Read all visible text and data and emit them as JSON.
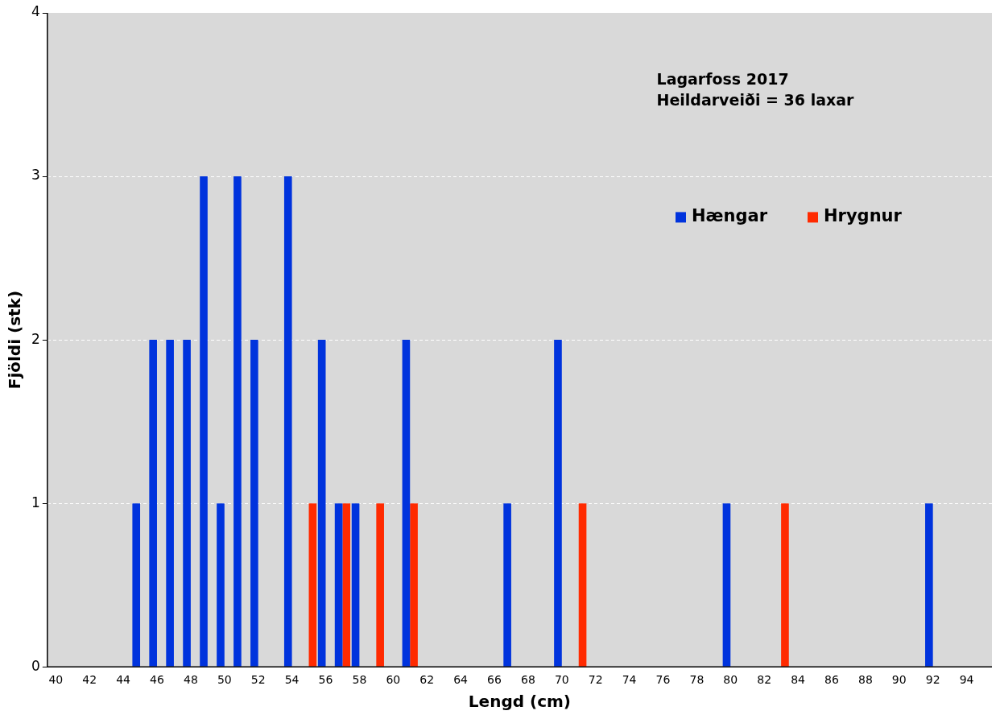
{
  "chart_data": {
    "type": "bar",
    "xlabel": "Lengd (cm)",
    "ylabel": "Fjöldi (stk)",
    "annotations": [
      "Lagarfoss 2017",
      "Heildarveiði = 36 laxar"
    ],
    "categories": [
      "40",
      null,
      "42",
      null,
      "44",
      null,
      "46",
      null,
      "48",
      null,
      "50",
      null,
      "52",
      null,
      "54",
      null,
      "56",
      null,
      "58",
      null,
      "60",
      null,
      "62",
      null,
      "64",
      null,
      "66",
      null,
      "68",
      null,
      "70",
      null,
      "72",
      null,
      "74",
      null,
      "76",
      null,
      "78",
      null,
      "80",
      null,
      "82",
      null,
      "84",
      null,
      "86",
      null,
      "88",
      null,
      "90",
      null,
      "92",
      null,
      "94",
      null
    ],
    "series": [
      {
        "name": "Hængar",
        "color": "#0033dd",
        "values": [
          0,
          0,
          0,
          0,
          0,
          1,
          2,
          2,
          2,
          3,
          1,
          3,
          2,
          0,
          3,
          0,
          2,
          1,
          1,
          0,
          0,
          2,
          0,
          0,
          0,
          0,
          0,
          1,
          0,
          0,
          2,
          0,
          0,
          0,
          0,
          0,
          0,
          0,
          0,
          0,
          1,
          0,
          0,
          0,
          0,
          0,
          0,
          0,
          0,
          0,
          0,
          0,
          1,
          0,
          0,
          0
        ]
      },
      {
        "name": "Hrygnur",
        "color": "#ff2a00",
        "values": [
          0,
          0,
          0,
          0,
          0,
          0,
          0,
          0,
          0,
          0,
          0,
          0,
          0,
          0,
          0,
          1,
          0,
          1,
          0,
          1,
          0,
          1,
          0,
          0,
          0,
          0,
          0,
          0,
          0,
          0,
          0,
          1,
          0,
          0,
          0,
          0,
          0,
          0,
          0,
          0,
          0,
          0,
          0,
          1,
          0,
          0,
          0,
          0,
          0,
          0,
          0,
          0,
          0,
          0,
          0,
          0
        ]
      }
    ],
    "ylim": [
      0,
      4
    ],
    "yticks": [
      0,
      1,
      2,
      3,
      4
    ],
    "grid": "y",
    "legend": "top right"
  }
}
